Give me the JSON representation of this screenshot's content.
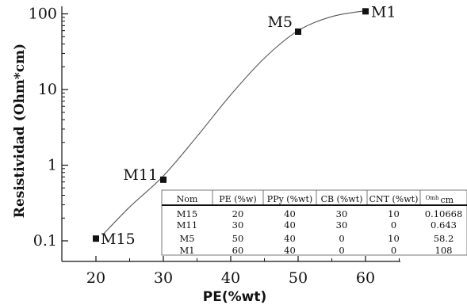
{
  "chart_data": {
    "type": "scatter",
    "xlabel": "PE(%wt)",
    "ylabel": "Resistividad (Ohm*cm)",
    "xlim": [
      15,
      65
    ],
    "ylim": [
      0.07,
      150
    ],
    "yscale": "log",
    "grid": false,
    "x_ticks": [
      "20",
      "30",
      "40",
      "50",
      "60"
    ],
    "y_ticks": [
      "0.1",
      "1",
      "10",
      "100"
    ],
    "series": [
      {
        "points": [
          {
            "label": "M15",
            "x": 20,
            "y": 0.107
          },
          {
            "label": "M11",
            "x": 30,
            "y": 0.643
          },
          {
            "label": "M5",
            "x": 50,
            "y": 58.2
          },
          {
            "label": "M1",
            "x": 60,
            "y": 108
          }
        ]
      }
    ],
    "fit_curve": {
      "type": "sigmoidal",
      "x": [
        21,
        25,
        30,
        35,
        40,
        45,
        50,
        55,
        60
      ],
      "y": [
        0.12,
        0.28,
        0.72,
        2.4,
        8.5,
        26,
        60,
        92,
        110
      ]
    },
    "table": {
      "headers": [
        "Nom",
        "PE (%w)",
        "PPy (%wt)",
        "CB (%wt)",
        "CNT (%wt)",
        "Omh cm"
      ],
      "rows": [
        [
          "M15",
          "20",
          "40",
          "30",
          "10",
          "0.10668"
        ],
        [
          "M11",
          "30",
          "40",
          "30",
          "0",
          "0.643"
        ],
        [
          "M5",
          "50",
          "40",
          "0",
          "10",
          "58.2"
        ],
        [
          "M1",
          "60",
          "40",
          "0",
          "0",
          "108"
        ]
      ]
    }
  }
}
